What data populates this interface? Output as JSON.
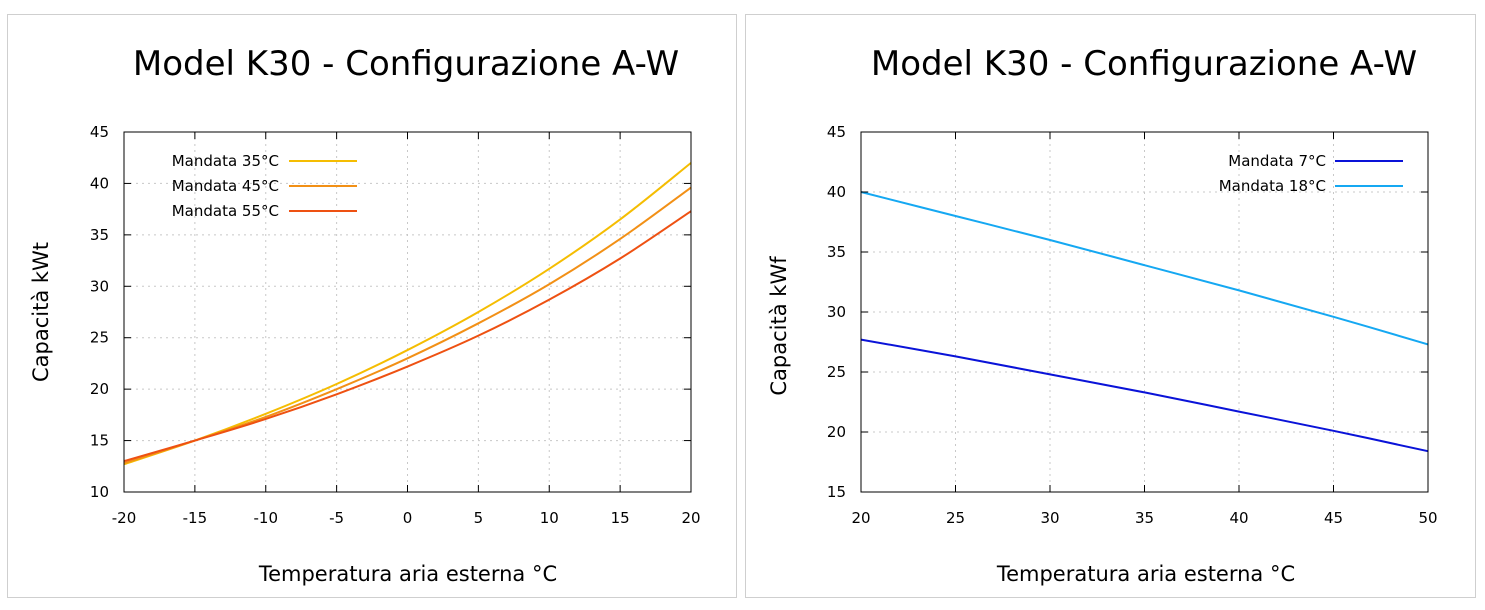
{
  "charts": [
    {
      "title": "Model K30 - Configurazione A-W",
      "xlabel": "Temperatura aria esterna °C",
      "ylabel": "Capacità kWt"
    },
    {
      "title": "Model K30 - Configurazione A-W",
      "xlabel": "Temperatura aria esterna °C",
      "ylabel": "Capacità kWf"
    }
  ],
  "chart_data": [
    {
      "type": "line",
      "title": "Model K30 - Configurazione A-W",
      "xlabel": "Temperatura aria esterna °C",
      "ylabel": "Capacità kWt",
      "xlim": [
        -20,
        20
      ],
      "ylim": [
        10,
        45
      ],
      "xticks": [
        -20,
        -15,
        -10,
        -5,
        0,
        5,
        10,
        15,
        20
      ],
      "yticks": [
        10,
        15,
        20,
        25,
        30,
        35,
        40,
        45
      ],
      "grid": true,
      "legend_position": "top-left",
      "x": [
        -20,
        -15,
        -10,
        -5,
        0,
        5,
        10,
        15,
        20
      ],
      "series": [
        {
          "name": "Mandata 35°C",
          "color": "#f5bd02",
          "values": [
            12.7,
            15.0,
            17.6,
            20.5,
            23.8,
            27.5,
            31.7,
            36.5,
            42.0
          ]
        },
        {
          "name": "Mandata 45°C",
          "color": "#f29016",
          "values": [
            12.8,
            15.0,
            17.3,
            20.0,
            23.0,
            26.4,
            30.2,
            34.6,
            39.6
          ]
        },
        {
          "name": "Mandata 55°C",
          "color": "#ee5112",
          "values": [
            13.0,
            15.0,
            17.1,
            19.5,
            22.2,
            25.2,
            28.7,
            32.7,
            37.3
          ]
        }
      ]
    },
    {
      "type": "line",
      "title": "Model K30 - Configurazione A-W",
      "xlabel": "Temperatura aria esterna °C",
      "ylabel": "Capacità kWf",
      "xlim": [
        20,
        50
      ],
      "ylim": [
        15,
        45
      ],
      "xticks": [
        20,
        25,
        30,
        35,
        40,
        45,
        50
      ],
      "yticks": [
        15,
        20,
        25,
        30,
        35,
        40,
        45
      ],
      "grid": true,
      "legend_position": "top-right",
      "x": [
        20,
        25,
        30,
        35,
        40,
        45,
        50
      ],
      "series": [
        {
          "name": "Mandata 7°C",
          "color": "#0a13d8",
          "values": [
            27.7,
            26.3,
            24.8,
            23.3,
            21.7,
            20.1,
            18.4
          ]
        },
        {
          "name": "Mandata 18°C",
          "color": "#15a8f2",
          "values": [
            40.0,
            38.0,
            36.0,
            33.9,
            31.8,
            29.6,
            27.3
          ]
        }
      ]
    }
  ]
}
